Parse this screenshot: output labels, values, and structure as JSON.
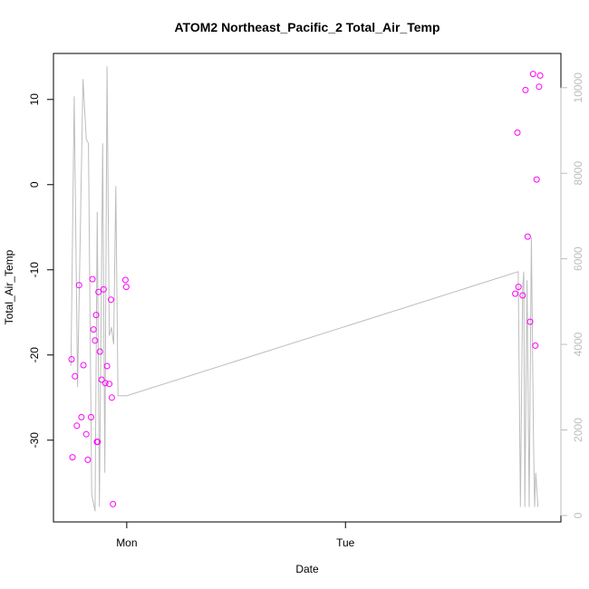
{
  "chart_data": {
    "type": "line",
    "title": "ATOM2 Northeast_Pacific_2 Total_Air_Temp",
    "xlabel": "Date",
    "ylabel": "Total_Air_Temp",
    "x_ticks": [
      {
        "label": "Mon",
        "pos": 0.0
      },
      {
        "label": "Tue",
        "pos": 1.0
      }
    ],
    "xlim": [
      -0.335,
      1.985
    ],
    "y_left": {
      "ylim": [
        -39.6,
        15.4
      ],
      "ticks": [
        -30,
        -20,
        -10,
        0,
        10
      ],
      "tick_labels": [
        "-30",
        "-20",
        "-10",
        "0",
        "10"
      ]
    },
    "y_right": {
      "ylim": [
        -150,
        10800
      ],
      "ticks": [
        0,
        2000,
        4000,
        6000,
        8000,
        10000
      ],
      "tick_labels": [
        "0",
        "2000",
        "4000",
        "6000",
        "8000",
        "10000"
      ],
      "color": "#bdbdbd"
    },
    "grid": false,
    "series": [
      {
        "kind": "line",
        "axis": "right",
        "color": "#bdbdbd",
        "x": [
          -0.255,
          -0.24,
          -0.225,
          -0.2,
          -0.185,
          -0.175,
          -0.16,
          -0.145,
          -0.135,
          -0.125,
          -0.11,
          -0.1,
          -0.09,
          -0.08,
          -0.07,
          -0.06,
          -0.05,
          -0.04,
          -0.03,
          -0.02,
          -0.01,
          0.0,
          1.79,
          1.8,
          1.81,
          1.815,
          1.82,
          1.83,
          1.84,
          1.85,
          1.86,
          1.865,
          1.87,
          1.88
        ],
        "y": [
          3500,
          9800,
          3000,
          10200,
          8800,
          8700,
          500,
          100,
          7100,
          200,
          8700,
          1000,
          10500,
          4200,
          4400,
          4000,
          7700,
          2800,
          2800,
          2800,
          2800,
          2800,
          5700,
          200,
          5300,
          5700,
          200,
          5500,
          200,
          6500,
          1700,
          200,
          1000,
          200
        ]
      },
      {
        "kind": "points",
        "axis": "left",
        "color": "#ff00ff",
        "x": [
          -0.252,
          -0.248,
          -0.237,
          -0.228,
          -0.218,
          -0.207,
          -0.198,
          -0.185,
          -0.178,
          -0.163,
          -0.157,
          -0.152,
          -0.145,
          -0.14,
          -0.136,
          -0.133,
          -0.129,
          -0.123,
          -0.115,
          -0.106,
          -0.098,
          -0.09,
          -0.08,
          -0.072,
          -0.068,
          -0.063,
          -0.006,
          -0.002,
          1.776,
          1.786,
          1.791,
          1.81,
          1.823,
          1.833,
          1.844,
          1.858,
          1.868,
          1.874,
          1.885,
          1.89
        ],
        "y": [
          -20.5,
          -32.0,
          -22.5,
          -28.3,
          -11.8,
          -27.3,
          -21.2,
          -29.3,
          -32.3,
          -27.3,
          -11.1,
          -17.0,
          -18.3,
          -15.3,
          -30.2,
          -30.2,
          -12.6,
          -19.6,
          -22.9,
          -12.3,
          -23.3,
          -21.3,
          -23.4,
          -13.5,
          -25.0,
          -37.5,
          -11.2,
          -12.0,
          -12.8,
          6.1,
          -12.0,
          -13.0,
          11.1,
          -6.1,
          -16.1,
          13.0,
          -18.9,
          0.6,
          11.5,
          12.8
        ]
      }
    ]
  }
}
